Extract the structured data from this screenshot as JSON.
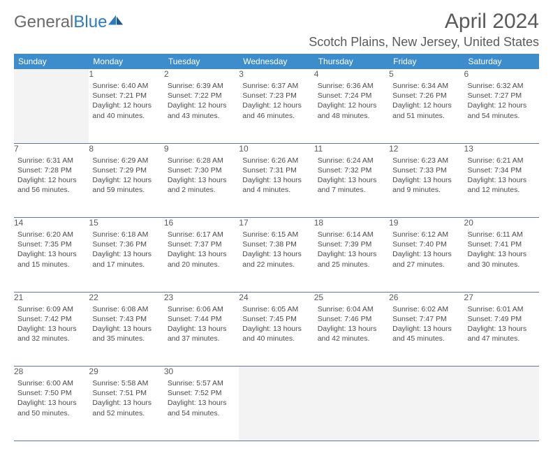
{
  "brand": {
    "part1": "General",
    "part2": "Blue"
  },
  "title": "April 2024",
  "location": "Scotch Plains, New Jersey, United States",
  "colors": {
    "header_bg": "#3d8dcc",
    "header_text": "#ffffff",
    "daynum_bg": "#eef0f2",
    "cell_border": "#5a7a9a",
    "empty_bg": "#f3f3f3",
    "text": "#4a4a4a",
    "title_text": "#5a5a5a"
  },
  "weekdays": [
    "Sunday",
    "Monday",
    "Tuesday",
    "Wednesday",
    "Thursday",
    "Friday",
    "Saturday"
  ],
  "weeks": [
    [
      null,
      {
        "n": "1",
        "sr": "6:40 AM",
        "ss": "7:21 PM",
        "dl": "12 hours and 40 minutes."
      },
      {
        "n": "2",
        "sr": "6:39 AM",
        "ss": "7:22 PM",
        "dl": "12 hours and 43 minutes."
      },
      {
        "n": "3",
        "sr": "6:37 AM",
        "ss": "7:23 PM",
        "dl": "12 hours and 46 minutes."
      },
      {
        "n": "4",
        "sr": "6:36 AM",
        "ss": "7:24 PM",
        "dl": "12 hours and 48 minutes."
      },
      {
        "n": "5",
        "sr": "6:34 AM",
        "ss": "7:26 PM",
        "dl": "12 hours and 51 minutes."
      },
      {
        "n": "6",
        "sr": "6:32 AM",
        "ss": "7:27 PM",
        "dl": "12 hours and 54 minutes."
      }
    ],
    [
      {
        "n": "7",
        "sr": "6:31 AM",
        "ss": "7:28 PM",
        "dl": "12 hours and 56 minutes."
      },
      {
        "n": "8",
        "sr": "6:29 AM",
        "ss": "7:29 PM",
        "dl": "12 hours and 59 minutes."
      },
      {
        "n": "9",
        "sr": "6:28 AM",
        "ss": "7:30 PM",
        "dl": "13 hours and 2 minutes."
      },
      {
        "n": "10",
        "sr": "6:26 AM",
        "ss": "7:31 PM",
        "dl": "13 hours and 4 minutes."
      },
      {
        "n": "11",
        "sr": "6:24 AM",
        "ss": "7:32 PM",
        "dl": "13 hours and 7 minutes."
      },
      {
        "n": "12",
        "sr": "6:23 AM",
        "ss": "7:33 PM",
        "dl": "13 hours and 9 minutes."
      },
      {
        "n": "13",
        "sr": "6:21 AM",
        "ss": "7:34 PM",
        "dl": "13 hours and 12 minutes."
      }
    ],
    [
      {
        "n": "14",
        "sr": "6:20 AM",
        "ss": "7:35 PM",
        "dl": "13 hours and 15 minutes."
      },
      {
        "n": "15",
        "sr": "6:18 AM",
        "ss": "7:36 PM",
        "dl": "13 hours and 17 minutes."
      },
      {
        "n": "16",
        "sr": "6:17 AM",
        "ss": "7:37 PM",
        "dl": "13 hours and 20 minutes."
      },
      {
        "n": "17",
        "sr": "6:15 AM",
        "ss": "7:38 PM",
        "dl": "13 hours and 22 minutes."
      },
      {
        "n": "18",
        "sr": "6:14 AM",
        "ss": "7:39 PM",
        "dl": "13 hours and 25 minutes."
      },
      {
        "n": "19",
        "sr": "6:12 AM",
        "ss": "7:40 PM",
        "dl": "13 hours and 27 minutes."
      },
      {
        "n": "20",
        "sr": "6:11 AM",
        "ss": "7:41 PM",
        "dl": "13 hours and 30 minutes."
      }
    ],
    [
      {
        "n": "21",
        "sr": "6:09 AM",
        "ss": "7:42 PM",
        "dl": "13 hours and 32 minutes."
      },
      {
        "n": "22",
        "sr": "6:08 AM",
        "ss": "7:43 PM",
        "dl": "13 hours and 35 minutes."
      },
      {
        "n": "23",
        "sr": "6:06 AM",
        "ss": "7:44 PM",
        "dl": "13 hours and 37 minutes."
      },
      {
        "n": "24",
        "sr": "6:05 AM",
        "ss": "7:45 PM",
        "dl": "13 hours and 40 minutes."
      },
      {
        "n": "25",
        "sr": "6:04 AM",
        "ss": "7:46 PM",
        "dl": "13 hours and 42 minutes."
      },
      {
        "n": "26",
        "sr": "6:02 AM",
        "ss": "7:47 PM",
        "dl": "13 hours and 45 minutes."
      },
      {
        "n": "27",
        "sr": "6:01 AM",
        "ss": "7:49 PM",
        "dl": "13 hours and 47 minutes."
      }
    ],
    [
      {
        "n": "28",
        "sr": "6:00 AM",
        "ss": "7:50 PM",
        "dl": "13 hours and 50 minutes."
      },
      {
        "n": "29",
        "sr": "5:58 AM",
        "ss": "7:51 PM",
        "dl": "13 hours and 52 minutes."
      },
      {
        "n": "30",
        "sr": "5:57 AM",
        "ss": "7:52 PM",
        "dl": "13 hours and 54 minutes."
      },
      null,
      null,
      null,
      null
    ]
  ],
  "labels": {
    "sunrise": "Sunrise:",
    "sunset": "Sunset:",
    "daylight": "Daylight:"
  }
}
